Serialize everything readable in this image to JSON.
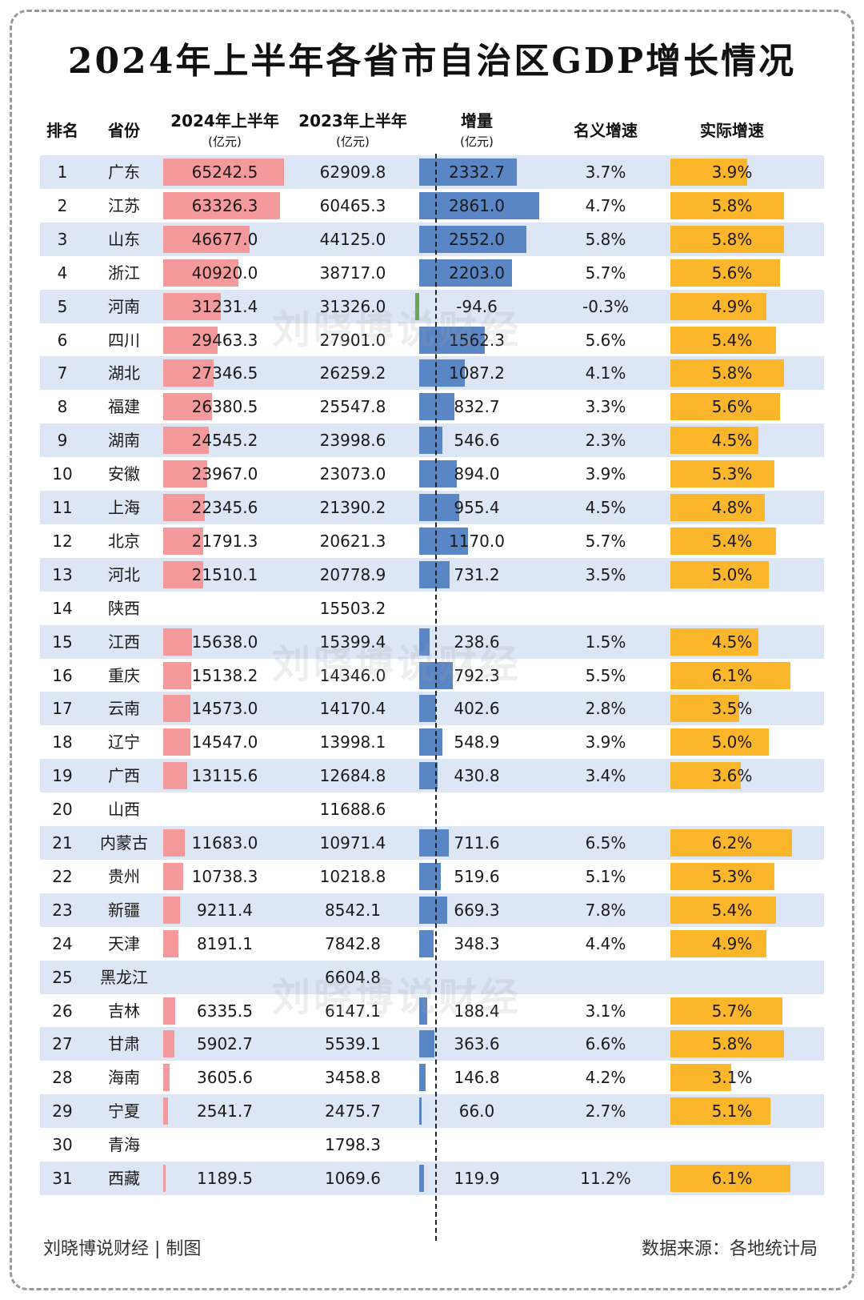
{
  "title": "2024年上半年各省市自治区GDP增长情况",
  "headers": {
    "rank": "排名",
    "province": "省份",
    "gdp2024": "2024年上半年",
    "gdp2024_unit": "(亿元)",
    "gdp2023": "2023年上半年",
    "gdp2023_unit": "(亿元)",
    "increase": "增量",
    "increase_unit": "(亿元)",
    "nominal": "名义增速",
    "real": "实际增速"
  },
  "watermark": "刘晓博说财经",
  "footer": {
    "left": "刘晓博说财经 | 制图",
    "right": "数据来源：各地统计局"
  },
  "colors": {
    "gdp2024_bar": "#f59a9c",
    "increase_bar": "#5b86c6",
    "negative_bar": "#6aa84f",
    "real_growth_bar": "#fbb62c",
    "row_shade": "#dce6f4"
  },
  "chart_data": {
    "type": "table",
    "columns": [
      "排名",
      "省份",
      "2024年上半年(亿元)",
      "2023年上半年(亿元)",
      "增量(亿元)",
      "名义增速",
      "实际增速"
    ],
    "rows": [
      {
        "rank": "1",
        "province": "广东",
        "gdp2024": "65242.5",
        "gdp2023": "62909.8",
        "increase": "2332.7",
        "nominal": "3.7%",
        "real": "3.9%"
      },
      {
        "rank": "2",
        "province": "江苏",
        "gdp2024": "63326.3",
        "gdp2023": "60465.3",
        "increase": "2861.0",
        "nominal": "4.7%",
        "real": "5.8%"
      },
      {
        "rank": "3",
        "province": "山东",
        "gdp2024": "46677.0",
        "gdp2023": "44125.0",
        "increase": "2552.0",
        "nominal": "5.8%",
        "real": "5.8%"
      },
      {
        "rank": "4",
        "province": "浙江",
        "gdp2024": "40920.0",
        "gdp2023": "38717.0",
        "increase": "2203.0",
        "nominal": "5.7%",
        "real": "5.6%"
      },
      {
        "rank": "5",
        "province": "河南",
        "gdp2024": "31231.4",
        "gdp2023": "31326.0",
        "increase": "-94.6",
        "nominal": "-0.3%",
        "real": "4.9%"
      },
      {
        "rank": "6",
        "province": "四川",
        "gdp2024": "29463.3",
        "gdp2023": "27901.0",
        "increase": "1562.3",
        "nominal": "5.6%",
        "real": "5.4%"
      },
      {
        "rank": "7",
        "province": "湖北",
        "gdp2024": "27346.5",
        "gdp2023": "26259.2",
        "increase": "1087.2",
        "nominal": "4.1%",
        "real": "5.8%"
      },
      {
        "rank": "8",
        "province": "福建",
        "gdp2024": "26380.5",
        "gdp2023": "25547.8",
        "increase": "832.7",
        "nominal": "3.3%",
        "real": "5.6%"
      },
      {
        "rank": "9",
        "province": "湖南",
        "gdp2024": "24545.2",
        "gdp2023": "23998.6",
        "increase": "546.6",
        "nominal": "2.3%",
        "real": "4.5%"
      },
      {
        "rank": "10",
        "province": "安徽",
        "gdp2024": "23967.0",
        "gdp2023": "23073.0",
        "increase": "894.0",
        "nominal": "3.9%",
        "real": "5.3%"
      },
      {
        "rank": "11",
        "province": "上海",
        "gdp2024": "22345.6",
        "gdp2023": "21390.2",
        "increase": "955.4",
        "nominal": "4.5%",
        "real": "4.8%"
      },
      {
        "rank": "12",
        "province": "北京",
        "gdp2024": "21791.3",
        "gdp2023": "20621.3",
        "increase": "1170.0",
        "nominal": "5.7%",
        "real": "5.4%"
      },
      {
        "rank": "13",
        "province": "河北",
        "gdp2024": "21510.1",
        "gdp2023": "20778.9",
        "increase": "731.2",
        "nominal": "3.5%",
        "real": "5.0%"
      },
      {
        "rank": "14",
        "province": "陕西",
        "gdp2024": "",
        "gdp2023": "15503.2",
        "increase": "",
        "nominal": "",
        "real": ""
      },
      {
        "rank": "15",
        "province": "江西",
        "gdp2024": "15638.0",
        "gdp2023": "15399.4",
        "increase": "238.6",
        "nominal": "1.5%",
        "real": "4.5%"
      },
      {
        "rank": "16",
        "province": "重庆",
        "gdp2024": "15138.2",
        "gdp2023": "14346.0",
        "increase": "792.3",
        "nominal": "5.5%",
        "real": "6.1%"
      },
      {
        "rank": "17",
        "province": "云南",
        "gdp2024": "14573.0",
        "gdp2023": "14170.4",
        "increase": "402.6",
        "nominal": "2.8%",
        "real": "3.5%"
      },
      {
        "rank": "18",
        "province": "辽宁",
        "gdp2024": "14547.0",
        "gdp2023": "13998.1",
        "increase": "548.9",
        "nominal": "3.9%",
        "real": "5.0%"
      },
      {
        "rank": "19",
        "province": "广西",
        "gdp2024": "13115.6",
        "gdp2023": "12684.8",
        "increase": "430.8",
        "nominal": "3.4%",
        "real": "3.6%"
      },
      {
        "rank": "20",
        "province": "山西",
        "gdp2024": "",
        "gdp2023": "11688.6",
        "increase": "",
        "nominal": "",
        "real": ""
      },
      {
        "rank": "21",
        "province": "内蒙古",
        "gdp2024": "11683.0",
        "gdp2023": "10971.4",
        "increase": "711.6",
        "nominal": "6.5%",
        "real": "6.2%"
      },
      {
        "rank": "22",
        "province": "贵州",
        "gdp2024": "10738.3",
        "gdp2023": "10218.8",
        "increase": "519.6",
        "nominal": "5.1%",
        "real": "5.3%"
      },
      {
        "rank": "23",
        "province": "新疆",
        "gdp2024": "9211.4",
        "gdp2023": "8542.1",
        "increase": "669.3",
        "nominal": "7.8%",
        "real": "5.4%"
      },
      {
        "rank": "24",
        "province": "天津",
        "gdp2024": "8191.1",
        "gdp2023": "7842.8",
        "increase": "348.3",
        "nominal": "4.4%",
        "real": "4.9%"
      },
      {
        "rank": "25",
        "province": "黑龙江",
        "gdp2024": "",
        "gdp2023": "6604.8",
        "increase": "",
        "nominal": "",
        "real": ""
      },
      {
        "rank": "26",
        "province": "吉林",
        "gdp2024": "6335.5",
        "gdp2023": "6147.1",
        "increase": "188.4",
        "nominal": "3.1%",
        "real": "5.7%"
      },
      {
        "rank": "27",
        "province": "甘肃",
        "gdp2024": "5902.7",
        "gdp2023": "5539.1",
        "increase": "363.6",
        "nominal": "6.6%",
        "real": "5.8%"
      },
      {
        "rank": "28",
        "province": "海南",
        "gdp2024": "3605.6",
        "gdp2023": "3458.8",
        "increase": "146.8",
        "nominal": "4.2%",
        "real": "3.1%"
      },
      {
        "rank": "29",
        "province": "宁夏",
        "gdp2024": "2541.7",
        "gdp2023": "2475.7",
        "increase": "66.0",
        "nominal": "2.7%",
        "real": "5.1%"
      },
      {
        "rank": "30",
        "province": "青海",
        "gdp2024": "",
        "gdp2023": "1798.3",
        "increase": "",
        "nominal": "",
        "real": ""
      },
      {
        "rank": "31",
        "province": "西藏",
        "gdp2024": "1189.5",
        "gdp2023": "1069.6",
        "increase": "119.9",
        "nominal": "11.2%",
        "real": "6.1%"
      }
    ]
  }
}
